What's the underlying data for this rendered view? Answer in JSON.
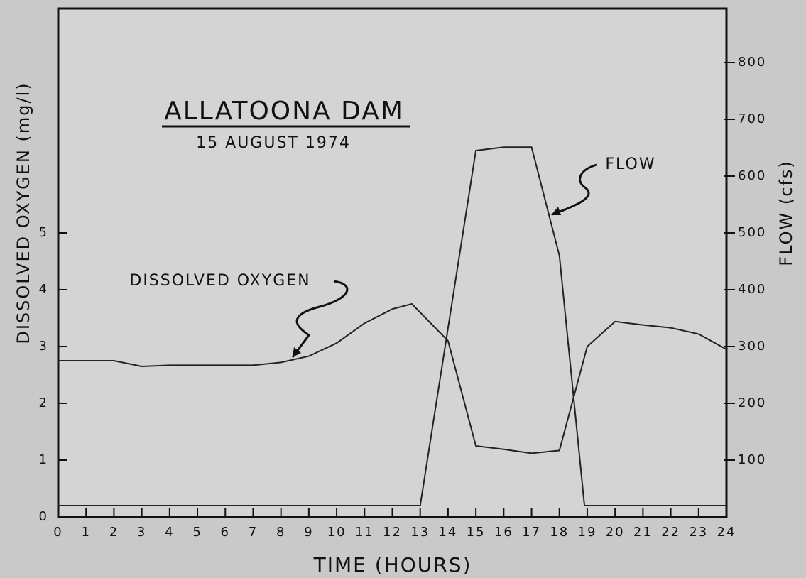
{
  "chart_data": {
    "type": "line",
    "title": "ALLATOONA DAM",
    "subtitle": "15 AUGUST 1974",
    "xlabel": "TIME (HOURS)",
    "ylabel": "DISSOLVED OXYGEN (mg/l)",
    "y2label": "FLOW (cfs)",
    "annotations": [
      "DISSOLVED OXYGEN",
      "FLOW"
    ],
    "xlim": [
      0,
      24
    ],
    "xticks": [
      0,
      1,
      2,
      3,
      4,
      5,
      6,
      7,
      8,
      9,
      10,
      11,
      12,
      13,
      14,
      15,
      16,
      17,
      18,
      19,
      20,
      21,
      22,
      23,
      24
    ],
    "ylim": [
      0,
      8.95
    ],
    "yticks": [
      0,
      1,
      2,
      3,
      4,
      5
    ],
    "y2lim": [
      0,
      895
    ],
    "y2ticks": [
      100,
      200,
      300,
      400,
      500,
      600,
      700,
      800
    ],
    "series": [
      {
        "name": "DISSOLVED OXYGEN",
        "color": "#222222",
        "x": [
          0,
          1,
          2,
          3,
          4,
          5,
          6,
          7,
          8,
          9,
          10,
          11,
          12,
          12.7,
          14,
          15,
          16,
          17,
          18,
          19,
          20,
          21,
          22,
          23,
          24
        ],
        "values": [
          2.75,
          2.75,
          2.75,
          2.65,
          2.67,
          2.67,
          2.67,
          2.67,
          2.72,
          2.83,
          3.06,
          3.41,
          3.66,
          3.75,
          3.1,
          1.25,
          1.19,
          1.12,
          1.17,
          3.0,
          3.44,
          3.38,
          3.33,
          3.22,
          2.95
        ]
      },
      {
        "name": "FLOW",
        "color": "#222222",
        "axis": "y2",
        "x": [
          0,
          13,
          15,
          16,
          17,
          18,
          18.9,
          24
        ],
        "values": [
          20,
          20,
          645,
          651,
          651,
          460,
          20,
          20
        ]
      }
    ]
  }
}
